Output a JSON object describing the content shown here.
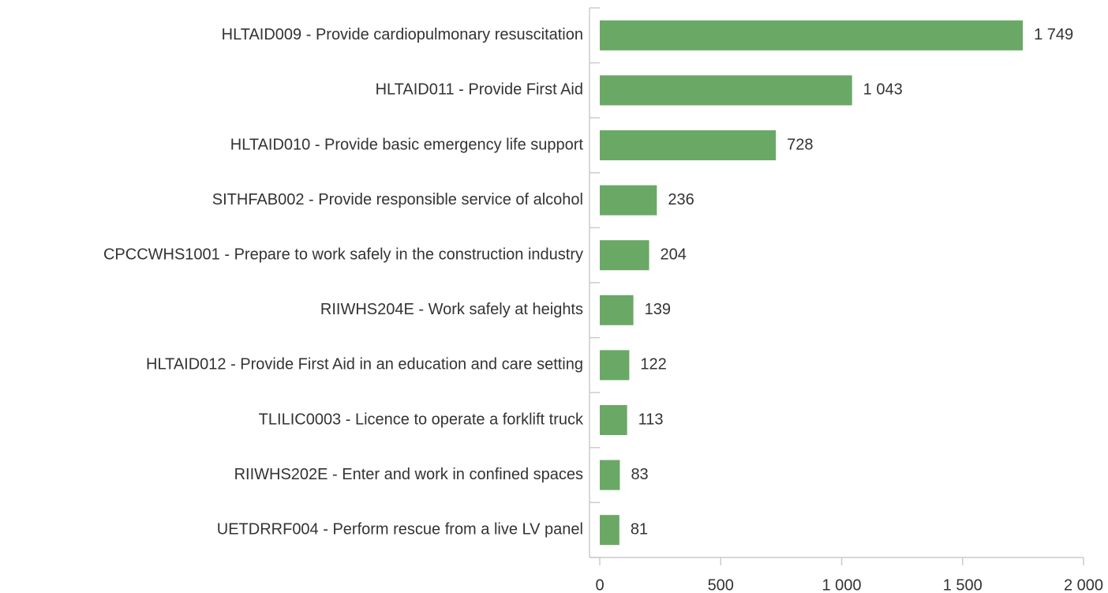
{
  "chart_data": {
    "type": "bar",
    "orientation": "horizontal",
    "categories": [
      "HLTAID009 - Provide cardiopulmonary resuscitation",
      "HLTAID011 - Provide First Aid",
      "HLTAID010 - Provide basic emergency life support",
      "SITHFAB002 - Provide responsible service of alcohol",
      "CPCCWHS1001 - Prepare to work safely in the construction industry",
      "RIIWHS204E - Work safely at heights",
      "HLTAID012 - Provide First Aid in an education and care setting",
      "TLILIC0003 - Licence to operate a forklift truck",
      "RIIWHS202E - Enter and work in confined spaces",
      "UETDRRF004 - Perform rescue from a live LV panel"
    ],
    "values": [
      1749,
      1043,
      728,
      236,
      204,
      139,
      122,
      113,
      83,
      81
    ],
    "value_labels": [
      "1 749",
      "1 043",
      "728",
      "236",
      "204",
      "139",
      "122",
      "113",
      "83",
      "81"
    ],
    "color": "#6aa866",
    "xlim": [
      0,
      2000
    ],
    "xticks": [
      0,
      500,
      {
        "value": 1000,
        "label": "1 000"
      },
      {
        "value": 1500,
        "label": "1 500"
      },
      {
        "value": 2000,
        "label": "2 000"
      }
    ]
  }
}
